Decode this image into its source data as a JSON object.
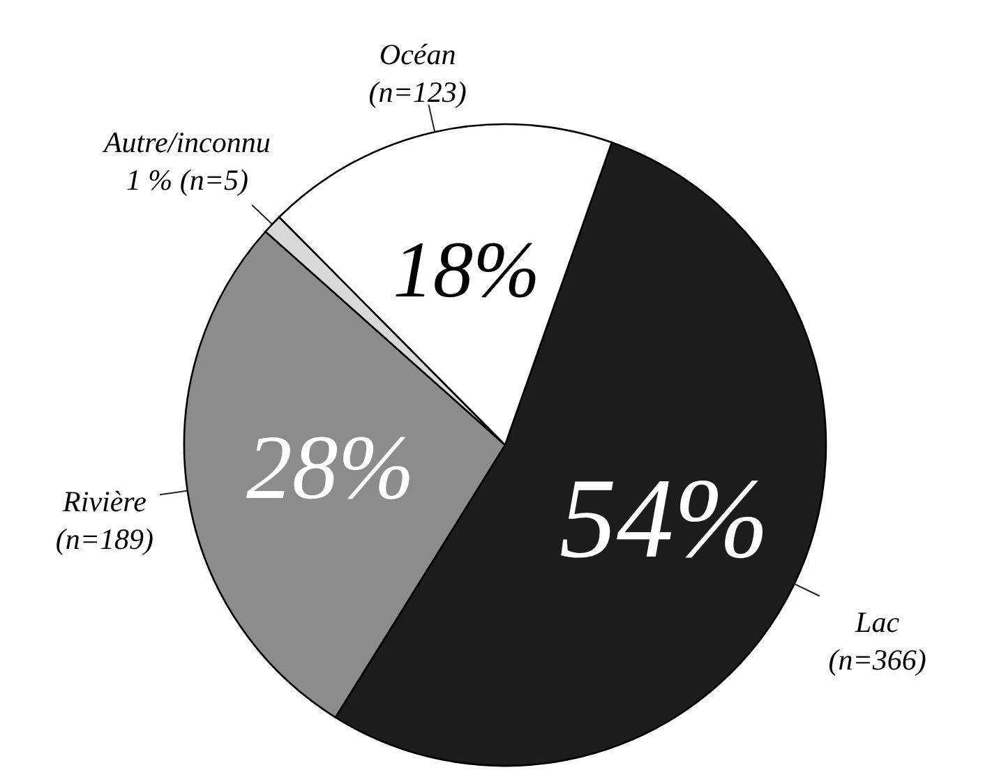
{
  "chart_data": {
    "type": "pie",
    "categories": [
      "Lac\n(n=366)",
      "Rivière\n(n=189)",
      "Autre/inconnu\n1 % (n=5)",
      "Océan\n(n=123)"
    ],
    "values": [
      54,
      28,
      1,
      18
    ],
    "colors": [
      "#1c1c1c",
      "#8c8c8c",
      "#d9d9d9",
      "#ffffff"
    ],
    "value_labels": [
      "54%",
      "28%",
      null,
      "18%"
    ]
  }
}
